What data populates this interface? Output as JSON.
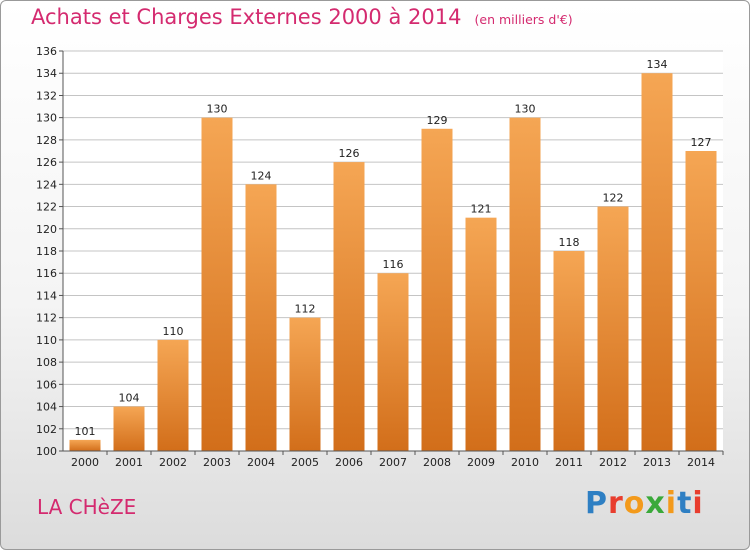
{
  "title": "Achats et Charges Externes 2000 à 2014",
  "unit": "(en milliers d'€)",
  "commune": "LA CHèZE",
  "logo": {
    "text": "Proxiti",
    "colors": [
      "#2e7fc3",
      "#e83d2e",
      "#f39a1b",
      "#3aa93a",
      "#f39a1b",
      "#2e7fc3",
      "#e83d2e"
    ]
  },
  "colors": {
    "title": "#d42a6f",
    "bar_top": "#f5a654",
    "bar_bottom": "#d26e1a",
    "grid": "#c4c4c4"
  },
  "chart_data": {
    "type": "bar",
    "categories": [
      "2000",
      "2001",
      "2002",
      "2003",
      "2004",
      "2005",
      "2006",
      "2007",
      "2008",
      "2009",
      "2010",
      "2011",
      "2012",
      "2013",
      "2014"
    ],
    "values": [
      101,
      104,
      110,
      130,
      124,
      112,
      126,
      116,
      129,
      121,
      130,
      118,
      122,
      134,
      127
    ],
    "yticks": [
      100,
      102,
      104,
      106,
      108,
      110,
      112,
      114,
      116,
      118,
      120,
      122,
      124,
      126,
      128,
      130,
      132,
      134,
      136
    ],
    "ylim": [
      100,
      136
    ],
    "grid": true,
    "data_labels": true
  }
}
